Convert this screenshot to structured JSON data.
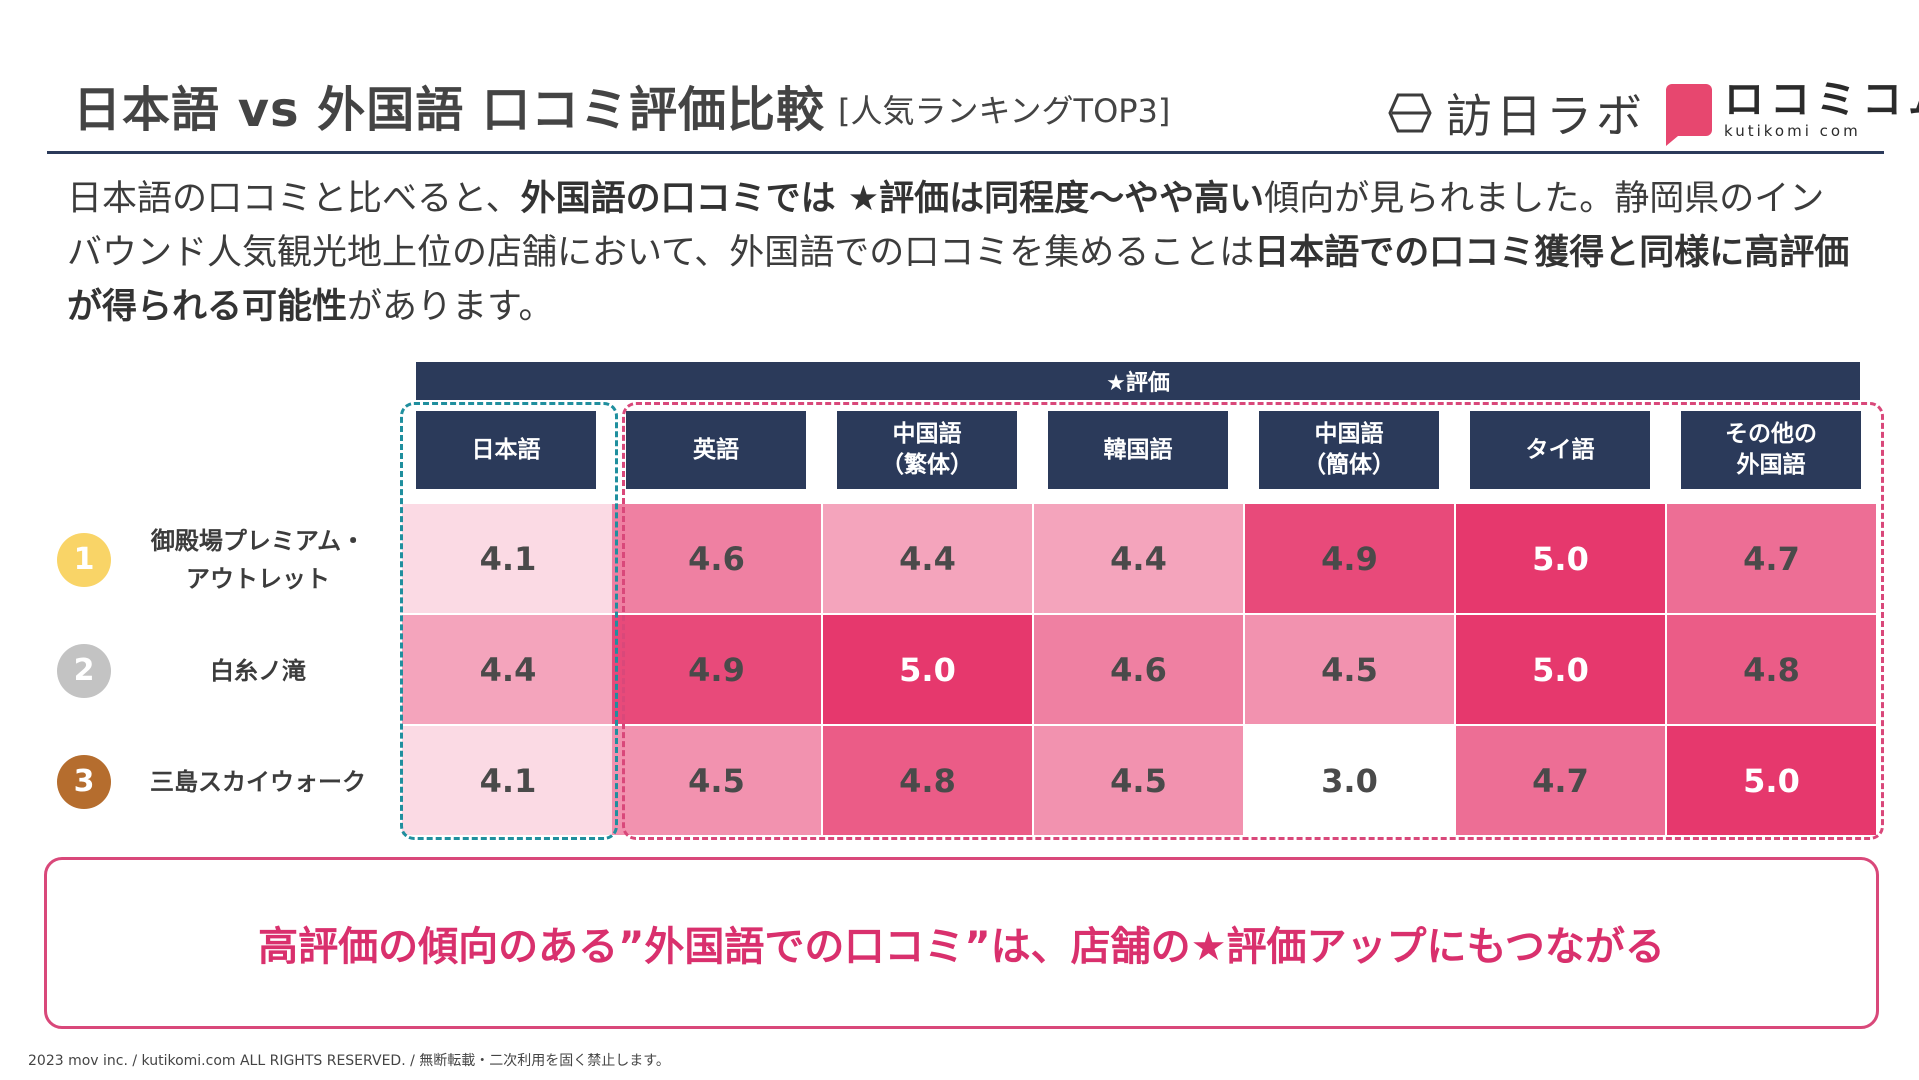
{
  "header": {
    "title": "日本語 vs 外国語 口コミ評価比較",
    "subtitle": "[人気ランキングTOP3]",
    "logo_primary": "訪日ラボ",
    "logo_secondary": "ロコミコム",
    "logo_secondary_sub": "kutikomi com"
  },
  "intro": {
    "p1": "日本語の口コミと比べると、",
    "b1": "外国語の口コミでは ★評価は同程度〜やや高い",
    "p2": "傾向が見られました。静岡県のインバウンド人気観光地上位の店舗において、外国語での口コミを集めることは",
    "b2": "日本語での口コミ獲得と同様に高評価が得られる可能性",
    "p3": "があります。"
  },
  "chart_data": {
    "type": "heatmap",
    "title": "★評価",
    "columns": [
      "日本語",
      "英語",
      "中国語\n（繁体）",
      "韓国語",
      "中国語\n（簡体）",
      "タイ語",
      "その他の\n外国語"
    ],
    "rows": [
      {
        "rank": "1",
        "name": "御殿場プレミアム・\nアウトレット",
        "values": [
          "4.1",
          "4.6",
          "4.4",
          "4.4",
          "4.9",
          "5.0",
          "4.7"
        ]
      },
      {
        "rank": "2",
        "name": "白糸ノ滝",
        "values": [
          "4.4",
          "4.9",
          "5.0",
          "4.6",
          "4.5",
          "5.0",
          "4.8"
        ]
      },
      {
        "rank": "3",
        "name": "三島スカイウォーク",
        "values": [
          "4.1",
          "4.5",
          "4.8",
          "4.5",
          "3.0",
          "4.7",
          "5.0"
        ]
      }
    ],
    "value_range": [
      3.0,
      5.0
    ],
    "colors": {
      "header": "#2b3a5a",
      "rank1": "#f9d467",
      "rank2": "#c3c3c3",
      "rank3": "#b56d2e",
      "scale_low": "#fdecf1",
      "scale_high": "#e6386d",
      "japanese_group": "#1f8f9e",
      "foreign_group": "#d9487a"
    }
  },
  "conclusion": "高評価の傾向のある”外国語での口コミ”は、店舗の★評価アップにもつながる",
  "footer": "2023 mov inc. / kutikomi.com ALL RIGHTS RESERVED. / 無断転載・二次利用を固く禁止します。"
}
